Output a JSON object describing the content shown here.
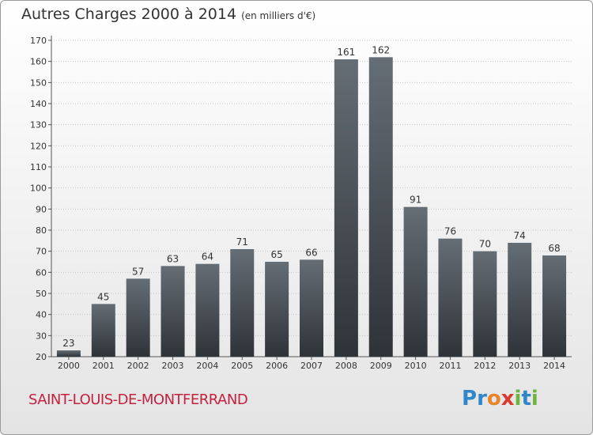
{
  "header": {
    "title": "Autres Charges 2000 à 2014",
    "subtitle": "(en milliers d'€)"
  },
  "footer": {
    "town": "SAINT-LOUIS-DE-MONTFERRAND",
    "logo_letters": [
      {
        "char": "P",
        "color": "#2f86c9"
      },
      {
        "char": "r",
        "color": "#2f86c9"
      },
      {
        "char": "o",
        "color": "#e8852a"
      },
      {
        "char": "x",
        "color": "#d93a2f"
      },
      {
        "char": "i",
        "color": "#6fb43f"
      },
      {
        "char": "t",
        "color": "#2f86c9"
      },
      {
        "char": "i",
        "color": "#6fb43f"
      }
    ]
  },
  "colors": {
    "bar_top": "#656d75",
    "bar_bottom": "#2e3338",
    "grid": "#c8c8c8"
  },
  "chart_data": {
    "type": "bar",
    "title": "Autres Charges 2000 à 2014",
    "subtitle": "(en milliers d'€)",
    "xlabel": "",
    "ylabel": "",
    "categories": [
      "2000",
      "2001",
      "2002",
      "2003",
      "2004",
      "2005",
      "2006",
      "2007",
      "2008",
      "2009",
      "2010",
      "2011",
      "2012",
      "2013",
      "2014"
    ],
    "values": [
      23,
      45,
      57,
      63,
      64,
      71,
      65,
      66,
      161,
      162,
      91,
      76,
      70,
      74,
      68
    ],
    "ylim": [
      20,
      170
    ],
    "yticks": [
      20,
      30,
      40,
      50,
      60,
      70,
      80,
      90,
      100,
      110,
      120,
      130,
      140,
      150,
      160,
      170
    ],
    "grid": true,
    "legend": "none"
  }
}
